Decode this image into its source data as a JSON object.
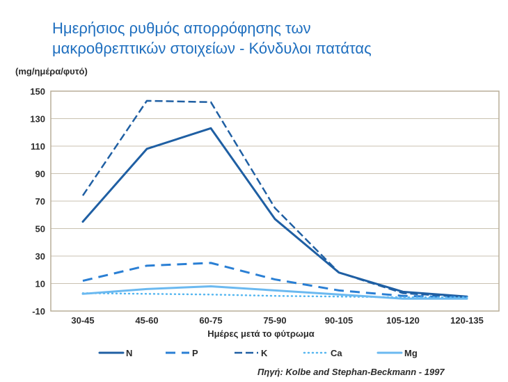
{
  "chart_data": {
    "type": "line",
    "title_lines": [
      "Ημερήσιος ρυθμός απορρόφησης των",
      "μακροθρεπτικών στοιχείων - Κόνδυλοι πατάτας"
    ],
    "ylabel": "(mg/ημέρα/φυτό)",
    "xlabel": "Ημέρες μετά το φύτρωμα",
    "categories": [
      "30-45",
      "45-60",
      "60-75",
      "75-90",
      "90-105",
      "105-120",
      "120-135"
    ],
    "ylim": [
      -10,
      150
    ],
    "yticks": [
      -10,
      10,
      30,
      50,
      70,
      90,
      110,
      130,
      150
    ],
    "grid": true,
    "legend_position": "bottom",
    "series": [
      {
        "name": "N",
        "values": [
          55,
          108,
          123,
          57,
          18,
          4,
          0.5
        ],
        "color": "#1f5fa3",
        "style": "solid"
      },
      {
        "name": "P",
        "values": [
          12,
          23,
          25,
          13,
          5,
          1,
          0
        ],
        "color": "#2a7fd4",
        "style": "dashed"
      },
      {
        "name": "K",
        "values": [
          74,
          143,
          142,
          65,
          18,
          3,
          0
        ],
        "color": "#1f5fa3",
        "style": "dashdot"
      },
      {
        "name": "Ca",
        "values": [
          3,
          2.5,
          2,
          1,
          0.5,
          0,
          0
        ],
        "color": "#55b6f0",
        "style": "dotted"
      },
      {
        "name": "Mg",
        "values": [
          2.5,
          6,
          8,
          5,
          2,
          -1,
          -1
        ],
        "color": "#6bb9f0",
        "style": "solid_light"
      }
    ],
    "source": "Πηγή: Kolbe and Stephan-Beckmann - 1997"
  }
}
